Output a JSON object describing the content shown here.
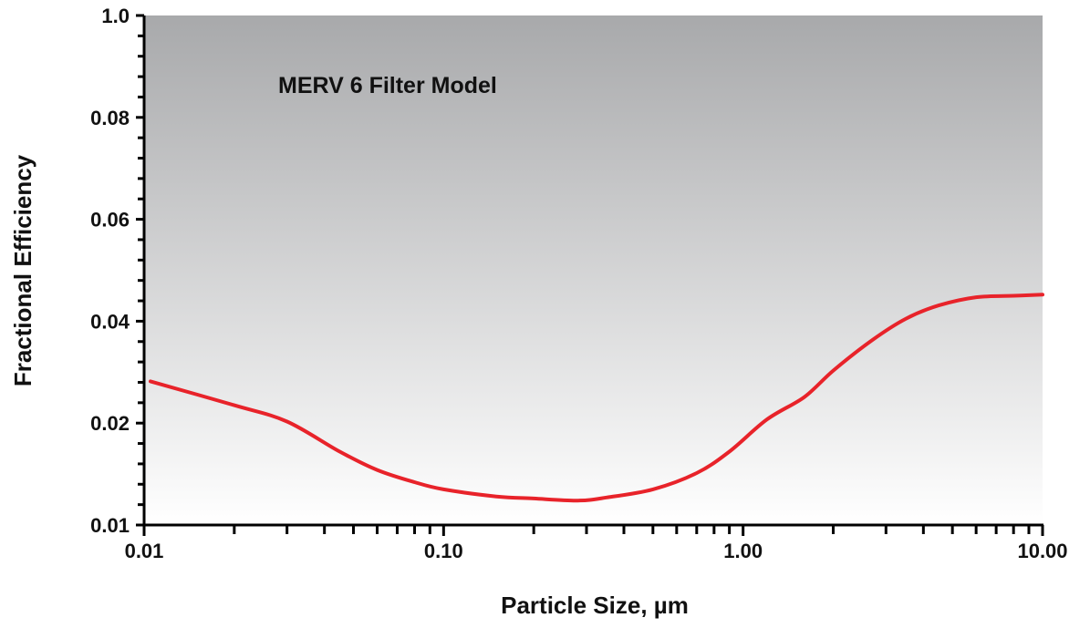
{
  "chart_data": {
    "type": "line",
    "title": "MERV 6 Filter Model",
    "xlabel": "Particle Size, µm",
    "ylabel": "Fractional Efficiency",
    "x_scale": "log",
    "xlim": [
      0.01,
      10.0
    ],
    "ylim": [
      0.01,
      1.0
    ],
    "x_ticks": [
      {
        "value": 0.01,
        "label": "0.01"
      },
      {
        "value": 0.1,
        "label": "0.10"
      },
      {
        "value": 1.0,
        "label": "1.00"
      },
      {
        "value": 10.0,
        "label": "10.00"
      }
    ],
    "y_ticks": [
      {
        "value": 0.01,
        "label": "0.01"
      },
      {
        "value": 0.02,
        "label": "0.02"
      },
      {
        "value": 0.04,
        "label": "0.04"
      },
      {
        "value": 0.06,
        "label": "0.06"
      },
      {
        "value": 0.08,
        "label": "0.08"
      },
      {
        "value": 1.0,
        "label": "1.0"
      }
    ],
    "grid": false,
    "legend": "none",
    "series": [
      {
        "color": "#e8232a",
        "x": [
          0.0105,
          0.02,
          0.03,
          0.045,
          0.06,
          0.08,
          0.1,
          0.15,
          0.2,
          0.28,
          0.35,
          0.5,
          0.7,
          0.9,
          1.2,
          1.6,
          2.0,
          2.7,
          3.5,
          4.5,
          6.0,
          8.0,
          10.0
        ],
        "y": [
          0.0282,
          0.0235,
          0.0203,
          0.0172,
          0.0154,
          0.0142,
          0.0135,
          0.0128,
          0.0126,
          0.0124,
          0.0127,
          0.0135,
          0.0151,
          0.0172,
          0.0207,
          0.0251,
          0.0303,
          0.0363,
          0.0405,
          0.0431,
          0.0447,
          0.045,
          0.0452
        ]
      }
    ],
    "background_gradient": [
      "#a8a9ab",
      "#ffffff"
    ]
  }
}
